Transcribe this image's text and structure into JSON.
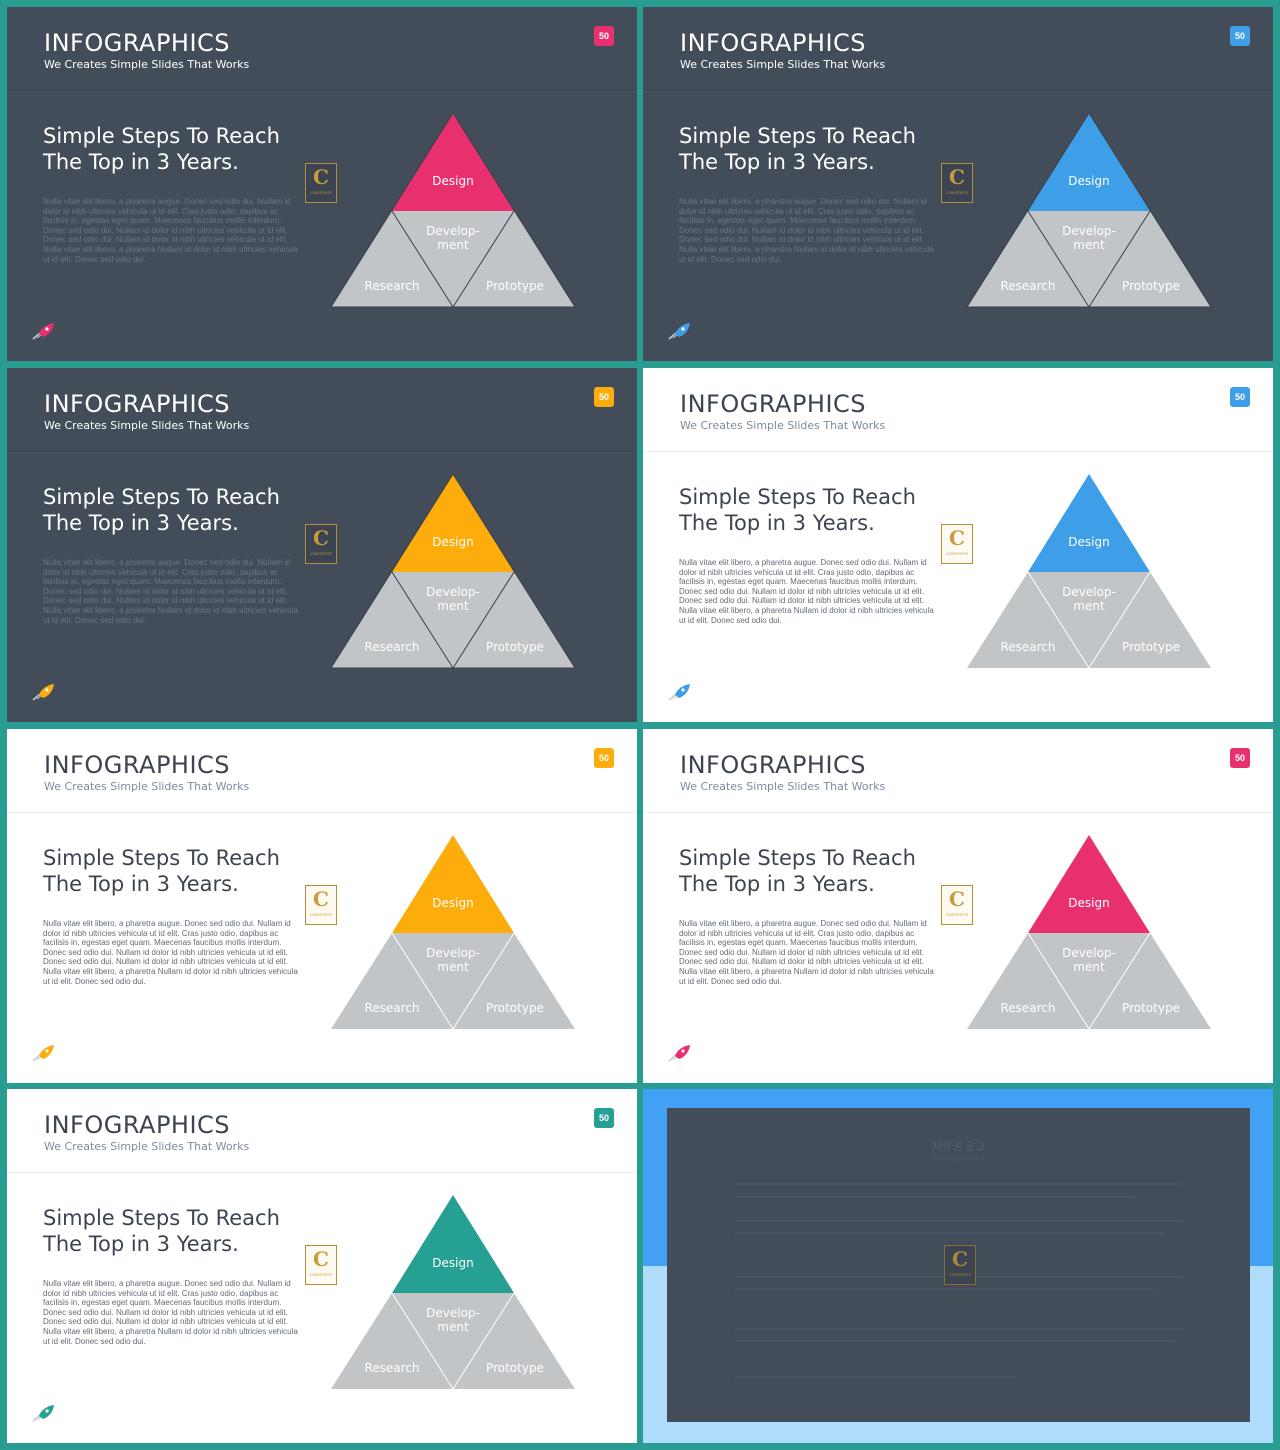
{
  "slide": {
    "title": "INFOGRAPHICS",
    "subtitle": "We Creates Simple Slides That Works",
    "badge": "50",
    "heading": "Simple Steps To Reach The Top in 3 Years.",
    "body": "Nulla vitae elit libero, a pharetra augue. Donec sed odio dui. Nullam id dolor id nibh ultricies vehicula ut id elit. Cras justo odio, dapibus ac facilisis in, egestas eget quam. Maecenas faucibus mollis interdum. Donec sed odio dui. Nullam id dolor id nibh ultricies vehicula ut id elit. Donec sed odio dui. Nullam id dolor id nibh ultricies vehicula ut id elit. Nulla vitae elit libero, a pharetra Nullam id dolor id nibh ultricies vehicula ut id elit. Donec sed odio dui.",
    "logo_letter": "C",
    "logo_word": "CONTENTS",
    "pyramid": {
      "top": "Design",
      "middle_line1": "Develop-",
      "middle_line2": "ment",
      "left": "Research",
      "right": "Prototype"
    }
  },
  "variants": [
    {
      "theme": "dark",
      "accent": "#e8306f"
    },
    {
      "theme": "dark",
      "accent": "#3f9ee8"
    },
    {
      "theme": "dark",
      "accent": "#fcac0b"
    },
    {
      "theme": "light",
      "accent": "#3f9ee8"
    },
    {
      "theme": "light",
      "accent": "#fcac0b"
    },
    {
      "theme": "light",
      "accent": "#e8306f"
    },
    {
      "theme": "light",
      "accent": "#26a092"
    }
  ],
  "notice": {
    "title": "저작권 공고",
    "subtitle": "Copyright Notice"
  },
  "colors": {
    "frame": "#2a9d93",
    "dark_bg": "#434d5a",
    "pyramid_gray": "#c2c5c8"
  },
  "icons": {
    "rocket": "rocket-icon",
    "logo": "contents-logo"
  }
}
